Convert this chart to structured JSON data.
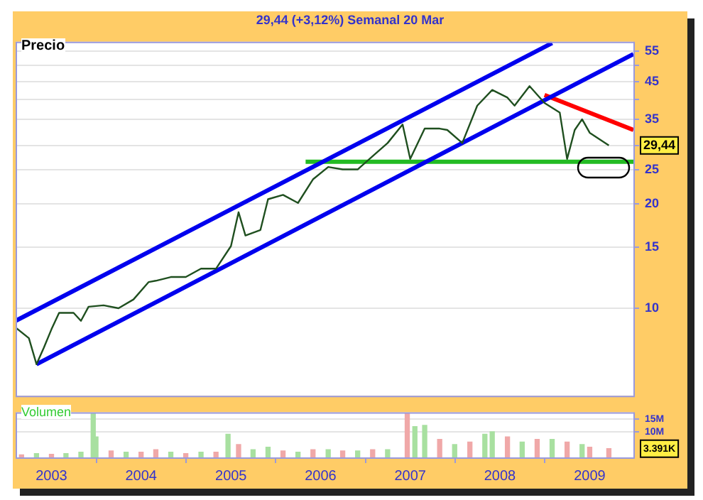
{
  "chart_data": [
    {
      "type": "line",
      "title": "Precio",
      "annotations": [
        "29,44 (+3,12%)   Semanal  20 Mar"
      ],
      "log": "y",
      "xlim": [
        "2002-08-08",
        "2009-06-28"
      ],
      "xticks": [
        "2003",
        "2004",
        "2005",
        "2006",
        "2007",
        "2008",
        "2009"
      ],
      "ylim": [
        5.6,
        58.5
      ],
      "yticks": [
        10,
        15,
        20,
        25,
        {
          "value": 29.44,
          "label": "29,44"
        },
        35,
        {
          "value": 40,
          "label": null
        },
        45,
        {
          "value": 50,
          "label": null
        },
        55
      ],
      "grid": "y",
      "legend": false,
      "tick_labels": "y",
      "marker": "none",
      "series": [
        {
          "color": "#1f4f1f",
          "x": [
            "2002-08-08",
            "2002-10",
            "2002-11",
            "2002-12",
            "2003-01",
            "2003-02",
            "2003-04",
            "2003-05",
            "2003-06",
            "2003-08",
            "2003-10",
            "2003-12",
            "2004-02",
            "2004-03",
            "2004-05",
            "2004-07",
            "2004-09",
            "2004-11",
            "2005-01",
            "2005-02",
            "2005-03",
            "2005-05",
            "2005-06",
            "2005-08",
            "2005-10",
            "2005-12",
            "2006-02",
            "2006-04",
            "2006-06",
            "2006-08",
            "2006-10",
            "2006-12",
            "2007-01",
            "2007-03",
            "2007-05",
            "2007-06",
            "2007-08",
            "2007-10",
            "2007-12",
            "2008-02",
            "2008-03",
            "2008-05",
            "2008-07",
            "2008-09",
            "2008-10",
            "2008-11",
            "2008-12",
            "2009-01",
            "2009-03-20"
          ],
          "values": [
            8.8,
            8.2,
            6.9,
            7.7,
            8.7,
            9.7,
            9.7,
            9.2,
            10.1,
            10.2,
            10,
            10.6,
            11.9,
            12,
            12.3,
            12.3,
            13,
            13,
            15.1,
            18.9,
            16.2,
            16.8,
            20.6,
            21.2,
            20.1,
            23.5,
            25.5,
            25.1,
            25.1,
            27.4,
            29.9,
            33.8,
            26.9,
            32.9,
            32.9,
            32.6,
            29.9,
            38.3,
            42.5,
            40.4,
            38.3,
            43.6,
            39,
            36.6,
            26.9,
            32.6,
            35,
            32,
            29.44
          ]
        },
        {
          "type": "line",
          "color": "#0000ee",
          "x": [
            "2002-08-08",
            "2008-08"
          ],
          "values": [
            9.2,
            58
          ]
        },
        {
          "type": "line",
          "color": "#0000ee",
          "x": [
            "2002-11",
            "2009-06-28"
          ],
          "values": [
            6.9,
            53.9
          ]
        },
        {
          "type": "line",
          "color": "#ff0000",
          "x": [
            "2008-07",
            "2009-06-28"
          ],
          "values": [
            41.1,
            32.6
          ]
        },
        {
          "type": "line",
          "color": "#22bb22",
          "x": [
            "2005-11",
            "2009-06-28"
          ],
          "values": [
            26.4,
            26.4
          ]
        }
      ]
    },
    {
      "type": "bar",
      "title": "Volumen",
      "xlim": [
        "2002-08-08",
        "2009-06-28"
      ],
      "xticks": [
        "2003",
        "2004",
        "2005",
        "2006",
        "2007",
        "2008",
        "2009"
      ],
      "ylim": [
        0,
        17.6
      ],
      "annotations": [
        "3.391K"
      ],
      "yticks": [
        {
          "value": 10,
          "label": "10M"
        },
        {
          "value": 15,
          "label": "15M"
        }
      ],
      "grid": "y",
      "legend": false,
      "x": [
        "2002-09",
        "2002-11",
        "2003-01",
        "2003-03",
        "2003-05",
        "2003-06-20",
        "2003-07",
        "2003-09",
        "2003-11",
        "2004-01",
        "2004-03",
        "2004-05",
        "2004-07",
        "2004-09",
        "2004-11",
        "2004-12-20",
        "2005-02",
        "2005-04",
        "2005-06",
        "2005-08",
        "2005-10",
        "2005-12",
        "2006-02",
        "2006-04",
        "2006-06",
        "2006-08",
        "2006-10",
        "2006-12-20",
        "2007-01-20",
        "2007-03",
        "2007-05",
        "2007-07",
        "2007-09",
        "2007-11",
        "2007-12",
        "2008-02",
        "2008-04",
        "2008-06",
        "2008-08",
        "2008-10",
        "2008-12",
        "2009-01",
        "2009-03-20"
      ],
      "values": [
        1,
        1.5,
        1.2,
        1.5,
        2,
        17,
        8,
        2.5,
        2,
        2,
        3,
        2,
        1.5,
        2,
        2,
        9,
        5,
        3,
        4,
        2.5,
        2,
        3,
        3,
        2.5,
        2.5,
        3,
        3,
        17,
        12,
        12.5,
        7,
        5,
        6,
        9,
        10,
        8,
        6,
        7,
        7,
        6,
        5,
        4,
        3.391
      ],
      "colors": [
        "#f0a8a8",
        "#a8e0a0",
        "#f0a8a8",
        "#a8e0a0",
        "#a8e0a0",
        "#a8e0a0",
        "#a8e0a0",
        "#f0a8a8",
        "#a8e0a0",
        "#f0a8a8",
        "#f0a8a8",
        "#a8e0a0",
        "#f0a8a8",
        "#a8e0a0",
        "#f0a8a8",
        "#a8e0a0",
        "#f0a8a8",
        "#a8e0a0",
        "#a8e0a0",
        "#f0a8a8",
        "#a8e0a0",
        "#f0a8a8",
        "#a8e0a0",
        "#f0a8a8",
        "#a8e0a0",
        "#f0a8a8",
        "#a8e0a0",
        "#f0a8a8",
        "#a8e0a0",
        "#a8e0a0",
        "#f0a8a8",
        "#a8e0a0",
        "#f0a8a8",
        "#a8e0a0",
        "#a8e0a0",
        "#f0a8a8",
        "#a8e0a0",
        "#f0a8a8",
        "#a8e0a0",
        "#f0a8a8",
        "#a8e0a0",
        "#f0a8a8",
        "#f0a8a8"
      ]
    }
  ]
}
